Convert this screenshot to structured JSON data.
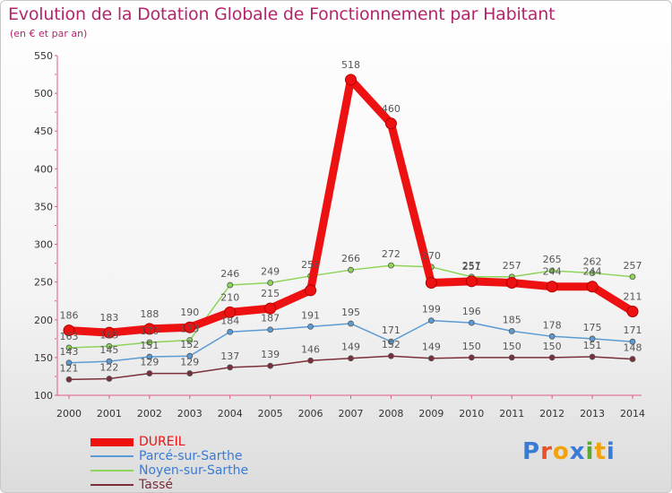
{
  "header": {
    "title": "Evolution de la Dotation Globale de Fonctionnement par Habitant",
    "subtitle": "(en € et par an)"
  },
  "logo": {
    "text": "Proxiti",
    "colors": [
      "#3a7bd5",
      "#e8522a",
      "#f2a20c",
      "#3a7bd5",
      "#5aa832",
      "#f2a20c",
      "#3a7bd5"
    ]
  },
  "chart_data": {
    "type": "line",
    "title": "Evolution de la Dotation Globale de Fonctionnement par Habitant",
    "subtitle": "(en € et par an)",
    "xlabel": "",
    "ylabel": "",
    "ylim": [
      100,
      550
    ],
    "y_ticks": [
      100,
      150,
      200,
      250,
      300,
      350,
      400,
      450,
      500,
      550
    ],
    "categories": [
      "2000",
      "2001",
      "2002",
      "2003",
      "2004",
      "2005",
      "2006",
      "2007",
      "2008",
      "2009",
      "2010",
      "2011",
      "2012",
      "2013",
      "2014"
    ],
    "grid": false,
    "legend_position": "bottom-left",
    "series": [
      {
        "name": "DUREIL",
        "color": "#ee1111",
        "emphasis": true,
        "values": [
          186,
          183,
          188,
          190,
          210,
          215,
          239,
          518,
          460,
          249,
          251,
          249,
          244,
          244,
          211
        ],
        "labels": [
          "186",
          "183",
          "188",
          "190",
          "210",
          "215",
          "",
          "518",
          "460",
          "",
          "251",
          "",
          "244",
          "244",
          "211"
        ]
      },
      {
        "name": "Parcé-sur-Sarthe",
        "color": "#5b9bd5",
        "emphasis": false,
        "values": [
          143,
          145,
          151,
          152,
          184,
          187,
          191,
          195,
          171,
          199,
          196,
          185,
          178,
          175,
          171
        ],
        "labels": [
          "143",
          "145",
          "151",
          "152",
          "184",
          "187",
          "191",
          "195",
          "171",
          "199",
          "196",
          "185",
          "178",
          "175",
          "171"
        ]
      },
      {
        "name": "Noyen-sur-Sarthe",
        "color": "#8ed45a",
        "emphasis": false,
        "values": [
          163,
          165,
          170,
          173,
          246,
          249,
          258,
          266,
          272,
          270,
          257,
          257,
          265,
          262,
          257
        ],
        "labels": [
          "163",
          "165",
          "170",
          "173",
          "246",
          "249",
          "258",
          "266",
          "272",
          "270",
          "257",
          "257",
          "265",
          "262",
          "257"
        ]
      },
      {
        "name": "Tassé",
        "color": "#7a2f3a",
        "emphasis": false,
        "values": [
          121,
          122,
          129,
          129,
          137,
          139,
          146,
          149,
          152,
          149,
          150,
          150,
          150,
          151,
          148
        ],
        "labels": [
          "121",
          "122",
          "129",
          "129",
          "137",
          "139",
          "146",
          "149",
          "152",
          "149",
          "150",
          "150",
          "150",
          "151",
          "148"
        ]
      }
    ]
  }
}
